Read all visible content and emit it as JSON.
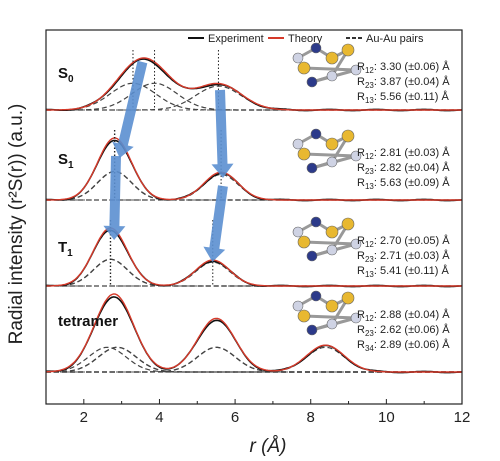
{
  "chart_data": {
    "type": "line",
    "title": "",
    "xlabel": "r (Å)",
    "ylabel": "Radial intensity (r²S(r)) (a.u.)",
    "xlim": [
      1,
      12
    ],
    "x_ticks": [
      2,
      4,
      6,
      8,
      10,
      12
    ],
    "legend": {
      "placement": "top-right",
      "entries": [
        {
          "name": "Experiment",
          "style": "solid",
          "color": "#111111"
        },
        {
          "name": "Theory",
          "style": "solid",
          "color": "#d63a2a"
        },
        {
          "name": "Au-Au pairs",
          "style": "dashed",
          "color": "#333333"
        }
      ]
    },
    "colors": {
      "experiment": "#111111",
      "theory": "#d63a2a",
      "pairs": "#444444",
      "arrow": "#5b8fd0",
      "au_atom": "#e8b830",
      "n_atom": "#2c3a8a",
      "c_atom": "#cfd3e4"
    },
    "panels": [
      {
        "label_main": "S",
        "label_sub": "0",
        "peaks": [
          {
            "center": 3.3,
            "amplitude": 0.95,
            "width": 0.6
          },
          {
            "center": 3.87,
            "amplitude": 0.95,
            "width": 0.6
          },
          {
            "center": 5.56,
            "amplitude": 0.85,
            "width": 0.6
          }
        ],
        "annotations": [
          {
            "name": "R",
            "sub": "12",
            "value": ": 3.30 (±0.06) Å"
          },
          {
            "name": "R",
            "sub": "23",
            "value": ": 3.87 (±0.04) Å"
          },
          {
            "name": "R",
            "sub": "13",
            "value": ": 5.56 (±0.11) Å"
          }
        ]
      },
      {
        "label_main": "S",
        "label_sub": "1",
        "peaks": [
          {
            "center": 2.81,
            "amplitude": 0.95,
            "width": 0.45
          },
          {
            "center": 2.82,
            "amplitude": 0.95,
            "width": 0.45
          },
          {
            "center": 5.63,
            "amplitude": 0.85,
            "width": 0.45
          }
        ],
        "annotations": [
          {
            "name": "R",
            "sub": "12",
            "value": ": 2.81 (±0.03) Å"
          },
          {
            "name": "R",
            "sub": "23",
            "value": ": 2.82 (±0.04) Å"
          },
          {
            "name": "R",
            "sub": "13",
            "value": ": 5.63 (±0.09) Å"
          }
        ]
      },
      {
        "label_main": "T",
        "label_sub": "1",
        "peaks": [
          {
            "center": 2.7,
            "amplitude": 0.95,
            "width": 0.45
          },
          {
            "center": 2.71,
            "amplitude": 0.95,
            "width": 0.45
          },
          {
            "center": 5.41,
            "amplitude": 0.85,
            "width": 0.45
          }
        ],
        "annotations": [
          {
            "name": "R",
            "sub": "12",
            "value": ": 2.70 (±0.05) Å"
          },
          {
            "name": "R",
            "sub": "23",
            "value": ": 2.71 (±0.03) Å"
          },
          {
            "name": "R",
            "sub": "13",
            "value": ": 5.41 (±0.11) Å"
          }
        ]
      },
      {
        "label_main": "tetramer",
        "label_sub": "",
        "peaks": [
          {
            "center": 2.88,
            "amplitude": 0.95,
            "width": 0.5
          },
          {
            "center": 2.62,
            "amplitude": 0.95,
            "width": 0.5
          },
          {
            "center": 2.89,
            "amplitude": 0.95,
            "width": 0.5
          },
          {
            "center": 5.5,
            "amplitude": 0.95,
            "width": 0.5
          },
          {
            "center": 5.51,
            "amplitude": 0.95,
            "width": 0.5
          },
          {
            "center": 8.39,
            "amplitude": 0.95,
            "width": 0.5
          }
        ],
        "annotations": [
          {
            "name": "R",
            "sub": "12",
            "value": ": 2.88 (±0.04) Å"
          },
          {
            "name": "R",
            "sub": "23",
            "value": ": 2.62 (±0.06) Å"
          },
          {
            "name": "R",
            "sub": "34",
            "value": ": 2.89 (±0.06) Å"
          }
        ]
      }
    ]
  }
}
